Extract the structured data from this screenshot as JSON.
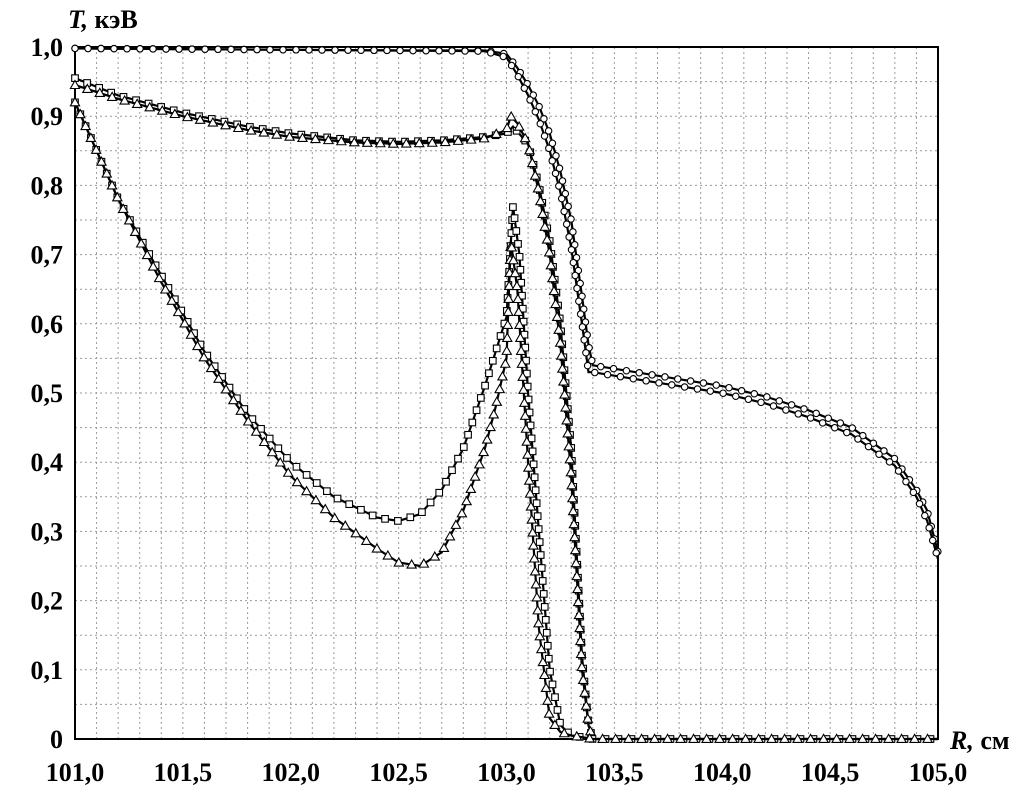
{
  "chart_data": {
    "type": "line",
    "ylabel_var": "T,",
    "ylabel_unit": " кэВ",
    "xlabel_var": "R,",
    "xlabel_unit": " см",
    "xlim": [
      101.0,
      105.0
    ],
    "ylim": [
      0.0,
      1.0
    ],
    "grid": true,
    "x_tick_labels": [
      "101,0",
      "101,5",
      "102,0",
      "102,5",
      "103,0",
      "103,5",
      "104,0",
      "104,5",
      "105,0"
    ],
    "y_tick_labels": [
      "0",
      "0,1",
      "0,2",
      "0,3",
      "0,4",
      "0,5",
      "0,6",
      "0,7",
      "0,8",
      "0,9",
      "1,0"
    ],
    "series": [
      {
        "marker": "circle",
        "x": [
          101.0,
          101.5,
          102.0,
          102.5,
          102.9,
          103.0,
          103.05,
          103.1,
          103.15,
          103.2,
          103.25,
          103.3,
          103.35,
          103.38,
          103.4,
          103.6,
          103.8,
          104.0,
          104.2,
          104.4,
          104.6,
          104.8,
          104.9,
          104.95,
          105.0
        ],
        "y": [
          0.998,
          0.997,
          0.996,
          0.995,
          0.995,
          0.99,
          0.97,
          0.945,
          0.915,
          0.875,
          0.82,
          0.75,
          0.64,
          0.57,
          0.54,
          0.53,
          0.52,
          0.51,
          0.495,
          0.475,
          0.45,
          0.405,
          0.36,
          0.33,
          0.27
        ]
      },
      {
        "marker": "circle",
        "x": [
          101.0,
          101.5,
          102.0,
          102.5,
          102.9,
          103.0,
          103.05,
          103.1,
          103.15,
          103.2,
          103.25,
          103.3,
          103.35,
          103.38,
          103.4,
          103.6,
          103.8,
          104.0,
          104.2,
          104.4,
          104.6,
          104.8,
          104.9,
          104.95,
          105.0
        ],
        "y": [
          0.998,
          0.997,
          0.996,
          0.995,
          0.994,
          0.985,
          0.96,
          0.93,
          0.895,
          0.85,
          0.79,
          0.71,
          0.6,
          0.53,
          0.53,
          0.52,
          0.51,
          0.5,
          0.485,
          0.465,
          0.44,
          0.395,
          0.35,
          0.315,
          0.26
        ]
      },
      {
        "marker": "square",
        "x": [
          101.0,
          101.2,
          101.5,
          101.8,
          102.0,
          102.3,
          102.5,
          102.7,
          102.9,
          103.0,
          103.03,
          103.1,
          103.15,
          103.2,
          103.25,
          103.3,
          103.35,
          103.38,
          103.4
        ],
        "y": [
          0.955,
          0.93,
          0.905,
          0.885,
          0.875,
          0.865,
          0.863,
          0.865,
          0.87,
          0.875,
          0.885,
          0.86,
          0.8,
          0.72,
          0.6,
          0.42,
          0.12,
          0.02,
          0.0
        ]
      },
      {
        "marker": "triangle",
        "x": [
          101.0,
          101.2,
          101.5,
          101.8,
          102.0,
          102.3,
          102.5,
          102.7,
          102.9,
          103.0,
          103.02,
          103.05,
          103.1,
          103.15,
          103.2,
          103.25,
          103.3,
          103.35,
          103.38,
          103.4
        ],
        "y": [
          0.945,
          0.925,
          0.9,
          0.88,
          0.87,
          0.862,
          0.86,
          0.862,
          0.868,
          0.88,
          0.9,
          0.89,
          0.86,
          0.79,
          0.7,
          0.57,
          0.38,
          0.1,
          0.02,
          0.0
        ]
      },
      {
        "marker": "square",
        "x": [
          101.0,
          101.2,
          101.4,
          101.6,
          101.8,
          102.0,
          102.2,
          102.4,
          102.5,
          102.6,
          102.7,
          102.8,
          102.9,
          102.95,
          103.0,
          103.03,
          103.06,
          103.1,
          103.15,
          103.2,
          103.25,
          103.3,
          103.4,
          103.6,
          104.0,
          104.5,
          105.0
        ],
        "y": [
          0.92,
          0.78,
          0.67,
          0.56,
          0.47,
          0.4,
          0.35,
          0.32,
          0.315,
          0.325,
          0.36,
          0.42,
          0.51,
          0.56,
          0.61,
          0.77,
          0.7,
          0.5,
          0.3,
          0.1,
          0.02,
          0.005,
          0.0,
          0.0,
          0.0,
          0.0,
          0.0
        ]
      },
      {
        "marker": "triangle",
        "x": [
          101.0,
          101.2,
          101.4,
          101.6,
          101.8,
          102.0,
          102.2,
          102.4,
          102.5,
          102.6,
          102.7,
          102.8,
          102.9,
          102.95,
          103.0,
          103.02,
          103.05,
          103.1,
          103.15,
          103.2,
          103.25,
          103.3,
          103.4,
          103.6,
          104.0,
          104.5,
          105.0
        ],
        "y": [
          0.92,
          0.78,
          0.66,
          0.55,
          0.46,
          0.38,
          0.32,
          0.275,
          0.255,
          0.25,
          0.27,
          0.33,
          0.42,
          0.48,
          0.55,
          0.72,
          0.65,
          0.4,
          0.16,
          0.03,
          0.01,
          0.005,
          0.0,
          0.0,
          0.0,
          0.0,
          0.0
        ]
      }
    ]
  }
}
